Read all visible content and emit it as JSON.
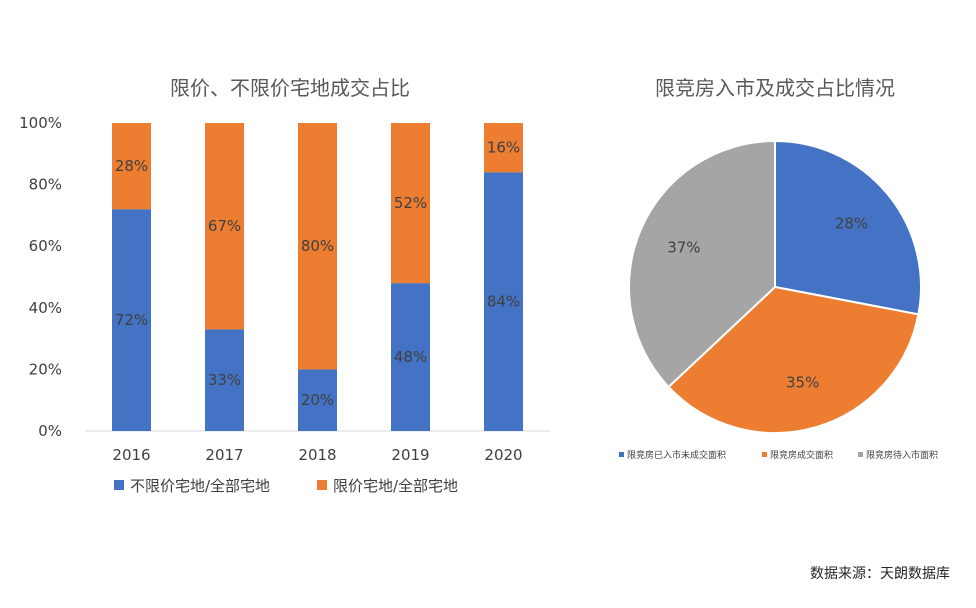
{
  "colors": {
    "blue": "#4472C4",
    "orange": "#ED7D31",
    "gray": "#A5A5A5",
    "axis": "#D9D9D9"
  },
  "chart_data": [
    {
      "type": "bar",
      "stacked": true,
      "title": "限价、不限价宅地成交占比",
      "categories": [
        "2016",
        "2017",
        "2018",
        "2019",
        "2020"
      ],
      "ylim": [
        0,
        100
      ],
      "yticks": [
        "0%",
        "20%",
        "40%",
        "60%",
        "80%",
        "100%"
      ],
      "series": [
        {
          "name": "不限价宅地/全部宅地",
          "values": [
            72,
            33,
            20,
            48,
            84
          ],
          "labels": [
            "72%",
            "33%",
            "20%",
            "48%",
            "84%"
          ],
          "color": "#4472C4"
        },
        {
          "name": "限价宅地/全部宅地",
          "values": [
            28,
            67,
            80,
            52,
            16
          ],
          "labels": [
            "28%",
            "67%",
            "80%",
            "52%",
            "16%"
          ],
          "color": "#ED7D31"
        }
      ],
      "legend": "bottom",
      "grid": false
    },
    {
      "type": "pie",
      "title": "限竞房入市及成交占比情况",
      "slices": [
        {
          "name": "限竞房已入市未成交面积",
          "value": 28,
          "label": "28%",
          "color": "#4472C4"
        },
        {
          "name": "限竞房成交面积",
          "value": 35,
          "label": "35%",
          "color": "#ED7D31"
        },
        {
          "name": "限竞房待入市面积",
          "value": 37,
          "label": "37%",
          "color": "#A5A5A5"
        }
      ],
      "legend": "bottom"
    }
  ],
  "source_note": "数据来源：天朗数据库"
}
